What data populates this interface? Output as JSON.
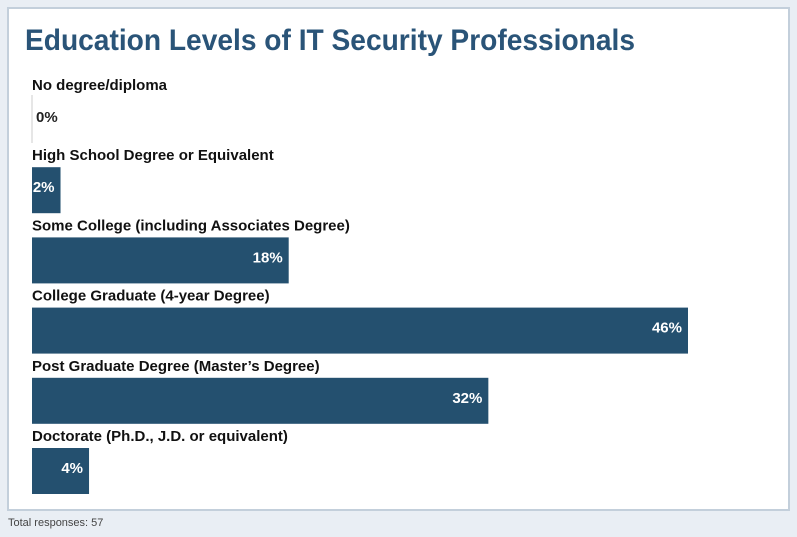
{
  "chart_data": {
    "type": "bar",
    "orientation": "horizontal",
    "title": "Education Levels of IT Security Professionals",
    "categories": [
      "No degree/diploma",
      "High School Degree or Equivalent",
      "Some College (including Associates Degree)",
      "College Graduate (4-year Degree)",
      "Post Graduate Degree (Master’s Degree)",
      "Doctorate (Ph.D., J.D. or equivalent)"
    ],
    "values": [
      0,
      2,
      18,
      46,
      32,
      4
    ],
    "value_labels": [
      "0%",
      "2%",
      "18%",
      "46%",
      "32%",
      "4%"
    ],
    "color": "#24506f",
    "note": "Total responses: 57"
  }
}
